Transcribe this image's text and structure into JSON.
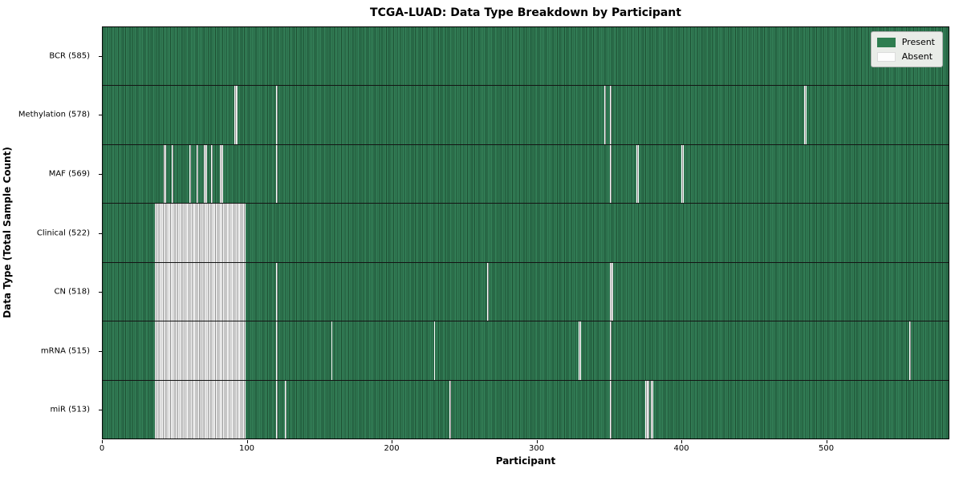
{
  "colors": {
    "present_fill": "#2e7d50",
    "present_stripe_light": "#35835a",
    "present_stripe_dark": "#1c4e31",
    "absent_fill": "#fdfdfd",
    "absent_stripe": "#8f8f8f",
    "legend_bg": "#e9ece8",
    "row_divider": "#141414"
  },
  "chart_data": {
    "type": "heatmap",
    "title": "TCGA-LUAD: Data Type Breakdown by Participant",
    "xlabel": "Participant",
    "ylabel": "Data Type (Total Sample Count)",
    "x_ticks": [
      0,
      100,
      200,
      300,
      400,
      500
    ],
    "x_max": 585,
    "legend_position": "upper right",
    "legend": [
      {
        "label": "Present",
        "color": "#2e7d50"
      },
      {
        "label": "Absent",
        "color": "#ffffff"
      }
    ],
    "rows": [
      {
        "label": "BCR (585)",
        "data_type": "BCR",
        "sample_count": 585,
        "absent_segments": []
      },
      {
        "label": "Methylation (578)",
        "data_type": "Methylation",
        "sample_count": 578,
        "absent_segments": [
          [
            91,
            92
          ],
          [
            120,
            120
          ],
          [
            347,
            347
          ],
          [
            351,
            351
          ],
          [
            485,
            486
          ]
        ]
      },
      {
        "label": "MAF (569)",
        "data_type": "MAF",
        "sample_count": 569,
        "absent_segments": [
          [
            42,
            43
          ],
          [
            48,
            48
          ],
          [
            60,
            60
          ],
          [
            65,
            65
          ],
          [
            70,
            71
          ],
          [
            75,
            75
          ],
          [
            81,
            82
          ],
          [
            120,
            120
          ],
          [
            351,
            351
          ],
          [
            369,
            370
          ],
          [
            400,
            401
          ]
        ]
      },
      {
        "label": "Clinical (522)",
        "data_type": "Clinical",
        "sample_count": 522,
        "absent_segments": [
          [
            36,
            98
          ]
        ]
      },
      {
        "label": "CN (518)",
        "data_type": "CN",
        "sample_count": 518,
        "absent_segments": [
          [
            36,
            98
          ],
          [
            120,
            120
          ],
          [
            266,
            266
          ],
          [
            351,
            352
          ]
        ]
      },
      {
        "label": "mRNA (515)",
        "data_type": "mRNA",
        "sample_count": 515,
        "absent_segments": [
          [
            36,
            98
          ],
          [
            120,
            120
          ],
          [
            158,
            158
          ],
          [
            229,
            229
          ],
          [
            329,
            330
          ],
          [
            351,
            351
          ],
          [
            558,
            558
          ]
        ]
      },
      {
        "label": "miR (513)",
        "data_type": "miR",
        "sample_count": 513,
        "absent_segments": [
          [
            36,
            98
          ],
          [
            120,
            120
          ],
          [
            126,
            126
          ],
          [
            240,
            240
          ],
          [
            351,
            351
          ],
          [
            375,
            377
          ],
          [
            379,
            380
          ]
        ]
      }
    ]
  }
}
